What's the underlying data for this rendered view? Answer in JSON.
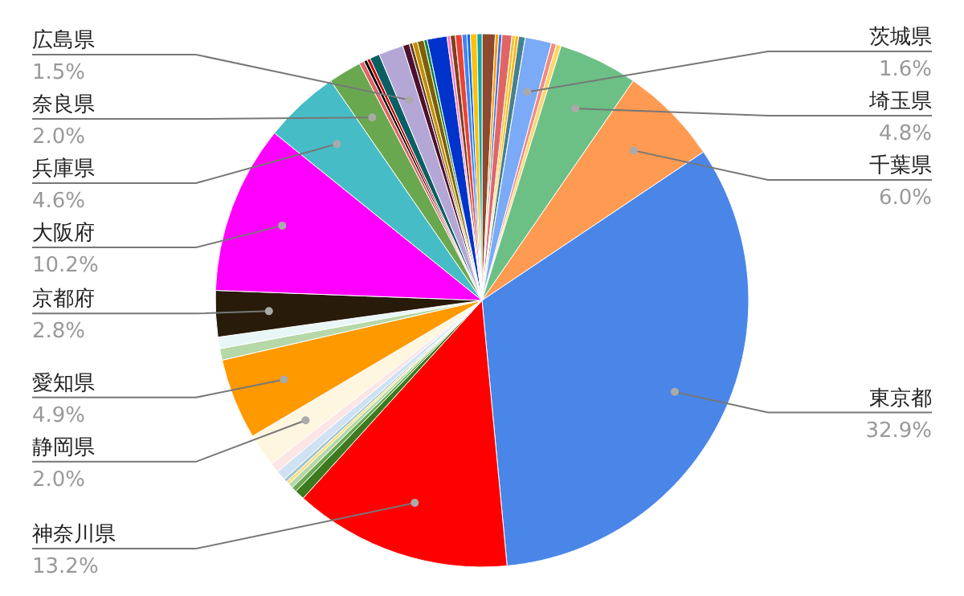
{
  "chart_data": {
    "type": "pie",
    "categories": [
      null,
      null,
      null,
      null,
      null,
      null,
      null,
      "茨城県",
      null,
      null,
      "埼玉県",
      "千葉県",
      "東京都",
      "神奈川県",
      null,
      null,
      null,
      null,
      null,
      null,
      null,
      "静岡県",
      "愛知県",
      null,
      null,
      "京都府",
      "大阪府",
      "兵庫県",
      "奈良県",
      null,
      null,
      null,
      null,
      "広島県",
      null,
      null,
      null,
      null,
      null,
      null,
      null,
      null,
      null,
      null,
      null,
      null,
      null
    ],
    "values": [
      0.8,
      0.2,
      0.2,
      0.6,
      0.2,
      0.2,
      0.4,
      1.6,
      0.3,
      0.3,
      4.8,
      6.0,
      32.9,
      13.2,
      0.6,
      0.3,
      0.3,
      0.2,
      0.2,
      0.6,
      0.6,
      2.0,
      4.9,
      0.7,
      0.7,
      2.8,
      10.2,
      4.6,
      2.0,
      0.3,
      0.2,
      0.2,
      0.6,
      1.5,
      0.4,
      0.2,
      0.3,
      0.4,
      0.2,
      1.2,
      0.2,
      0.3,
      0.4,
      0.3,
      0.2,
      0.4,
      0.3
    ],
    "value_labels": [
      null,
      null,
      null,
      null,
      null,
      null,
      null,
      "1.6%",
      null,
      null,
      "4.8%",
      "6.0%",
      "32.9%",
      "13.2%",
      null,
      null,
      null,
      null,
      null,
      null,
      null,
      "2.0%",
      "4.9%",
      null,
      null,
      "2.8%",
      "10.2%",
      "4.6%",
      "2.0%",
      null,
      null,
      null,
      null,
      "1.5%",
      null,
      null,
      null,
      null,
      null,
      null,
      null,
      null,
      null,
      null,
      null,
      null,
      null
    ],
    "colors": [
      "#8d4a2f",
      "#ff9900",
      "#3c78d8",
      "#e06666",
      "#f1c232",
      "#ffb300",
      "#45818e",
      "#7baaf7",
      "#f28b82",
      "#ffd666",
      "#6cc085",
      "#ff9a52",
      "#4a86e8",
      "#ff0000",
      "#3d7a1f",
      "#6aa84f",
      "#b6d7a8",
      "#f6e08a",
      "#a2c4c9",
      "#cfe2f3",
      "#fce5e5",
      "#fff6e0",
      "#ff9900",
      "#b6d7a8",
      "#e8f6f6",
      "#281b0a",
      "#ff00ff",
      "#46bdc6",
      "#6aa84f",
      "#e06666",
      "#000000",
      "#cc0000",
      "#0b5f63",
      "#b4a7d6",
      "#4c1130",
      "#6d3b1e",
      "#bf9000",
      "#7f6000",
      "#0b8043",
      "#0033cc",
      "#ff79c6",
      "#7f3f1f",
      "#ea4335",
      "#4285f4",
      "#0066ff",
      "#ffc107",
      "#12a4a4"
    ]
  }
}
